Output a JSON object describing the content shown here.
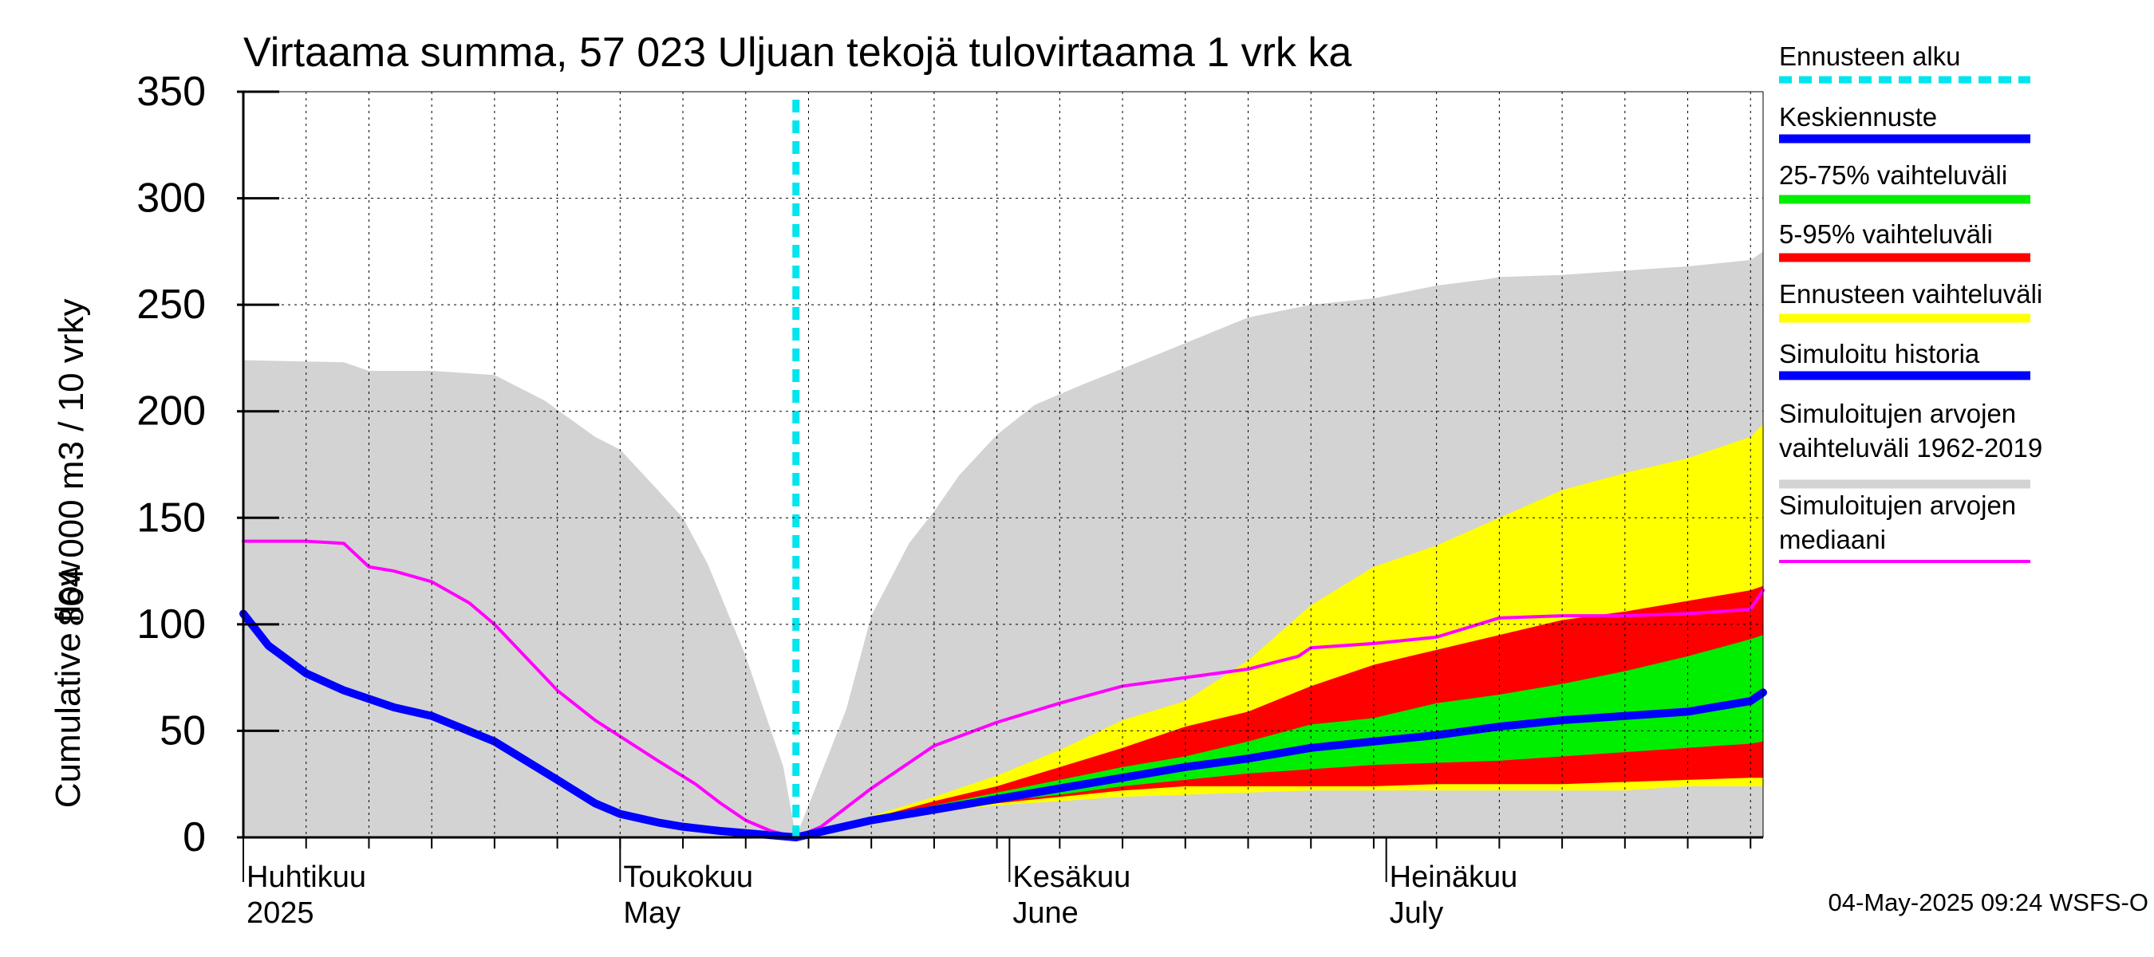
{
  "chart_data": {
    "type": "area",
    "title": "Virtaama summa, 57 023 Uljuan tekojä tulovirtaama 1 vrk ka",
    "ylabel_primary": "864 000 m3 / 10 vrky",
    "ylabel_secondary": "Cumulative flow",
    "ylim": [
      0,
      350
    ],
    "yticks": [
      0,
      50,
      100,
      150,
      200,
      250,
      300,
      350
    ],
    "x_unit": "day",
    "x_range": [
      "2025-04-01",
      "2025-07-31"
    ],
    "month_labels": [
      {
        "date": "2025-04-01",
        "fi": "Huhtikuu",
        "en": "2025"
      },
      {
        "date": "2025-05-01",
        "fi": "Toukokuu",
        "en": "May"
      },
      {
        "date": "2025-06-01",
        "fi": "Kesäkuu",
        "en": "June"
      },
      {
        "date": "2025-07-01",
        "fi": "Heinäkuu",
        "en": "July"
      }
    ],
    "forecast_start": "2025-05-04",
    "grid": true,
    "legend_position": "right",
    "series": [
      {
        "name": "Simuloitujen arvojen vaihteluväli 1962-2019",
        "kind": "band",
        "color": "#d3d3d3",
        "x": [
          0,
          8,
          10,
          15,
          20,
          24,
          28,
          30,
          33,
          35,
          37,
          40,
          43,
          44,
          45,
          48,
          50,
          53,
          55,
          57,
          60,
          63,
          67,
          70,
          75,
          80,
          85,
          90,
          95,
          99,
          100,
          105,
          110,
          115,
          120,
          121
        ],
        "upper": [
          224,
          223,
          219,
          219,
          217,
          205,
          188,
          182,
          163,
          150,
          128,
          85,
          33,
          0,
          15,
          60,
          104,
          138,
          153,
          170,
          189,
          203,
          213,
          220,
          232,
          244,
          250,
          253,
          259,
          262,
          263,
          264,
          266,
          268,
          271,
          275
        ],
        "lower": [
          0,
          0,
          0,
          0,
          0,
          0,
          0,
          0,
          0,
          0,
          0,
          0,
          0,
          0,
          0,
          0,
          0,
          0,
          0,
          0,
          0,
          0,
          0,
          0,
          0,
          0,
          0,
          0,
          0,
          0,
          0,
          0,
          0,
          0,
          0,
          0
        ]
      },
      {
        "name": "Ennusteen vaihteluväli",
        "kind": "band",
        "color": "#ffff00",
        "x": [
          44,
          50,
          55,
          60,
          65,
          70,
          75,
          80,
          85,
          90,
          95,
          100,
          105,
          110,
          115,
          120,
          121
        ],
        "upper": [
          0,
          10,
          19,
          29,
          41,
          55,
          64,
          83,
          109,
          127,
          137,
          150,
          163,
          171,
          178,
          188,
          194
        ],
        "lower": [
          0,
          8,
          12,
          15,
          17,
          19,
          20,
          21,
          22,
          22,
          22,
          22,
          22,
          22,
          24,
          24,
          24
        ]
      },
      {
        "name": "5-95% vaihteluväli",
        "kind": "band",
        "color": "#ff0000",
        "x": [
          44,
          50,
          55,
          60,
          65,
          70,
          75,
          80,
          85,
          90,
          95,
          100,
          105,
          110,
          115,
          120,
          121
        ],
        "upper": [
          0,
          9,
          17,
          24,
          33,
          42,
          52,
          59,
          71,
          81,
          88,
          95,
          102,
          106,
          111,
          116,
          118
        ],
        "lower": [
          0,
          8,
          12,
          16,
          19,
          22,
          24,
          24,
          24,
          24,
          25,
          25,
          25,
          26,
          27,
          28,
          28
        ]
      },
      {
        "name": "25-75% vaihteluväli",
        "kind": "band",
        "color": "#00ee00",
        "x": [
          44,
          50,
          55,
          60,
          65,
          70,
          75,
          80,
          85,
          90,
          95,
          100,
          105,
          110,
          115,
          120,
          121
        ],
        "upper": [
          0,
          9,
          15,
          21,
          27,
          33,
          38,
          45,
          53,
          56,
          63,
          67,
          72,
          78,
          85,
          93,
          95
        ],
        "lower": [
          0,
          8,
          13,
          17,
          20,
          24,
          27,
          30,
          32,
          34,
          35,
          36,
          38,
          40,
          42,
          44,
          45
        ]
      },
      {
        "name": "Simuloitujen arvojen mediaani",
        "kind": "line",
        "color": "#ff00ff",
        "x": [
          0,
          5,
          8,
          10,
          12,
          15,
          18,
          20,
          25,
          28,
          33,
          36,
          38,
          40,
          42,
          44,
          46,
          50,
          55,
          60,
          65,
          70,
          75,
          80,
          84,
          85,
          90,
          95,
          100,
          105,
          110,
          115,
          120,
          121
        ],
        "values": [
          139,
          139,
          138,
          127,
          125,
          120,
          110,
          100,
          69,
          55,
          36,
          25,
          16,
          8,
          3,
          0,
          5,
          23,
          43,
          54,
          63,
          71,
          75,
          79,
          85,
          89,
          91,
          94,
          103,
          104,
          104,
          105,
          107,
          116
        ]
      },
      {
        "name": "Keskiennuste",
        "kind": "line",
        "color": "#0000ff",
        "x": [
          44,
          50,
          55,
          60,
          65,
          70,
          75,
          80,
          85,
          90,
          95,
          100,
          105,
          110,
          115,
          120,
          121
        ],
        "values": [
          0,
          8,
          13,
          18,
          23,
          28,
          33,
          37,
          42,
          45,
          48,
          52,
          55,
          57,
          59,
          64,
          68
        ]
      },
      {
        "name": "Simuloitu historia",
        "kind": "line",
        "color": "#0000ff",
        "x": [
          0,
          2,
          5,
          8,
          12,
          15,
          20,
          25,
          28,
          30,
          33,
          35,
          38,
          40,
          42,
          44
        ],
        "values": [
          105,
          90,
          77,
          69,
          61,
          57,
          45,
          27,
          16,
          11,
          7,
          5,
          3,
          2,
          1,
          0
        ]
      },
      {
        "name": "Ennusteen alku",
        "kind": "vline",
        "color": "#00e5ee",
        "x": [
          44
        ]
      }
    ]
  },
  "legend": {
    "items": [
      {
        "label": "Ennusteen alku",
        "color": "#00e5ee",
        "dashed": true
      },
      {
        "label": "Keskiennuste",
        "color": "#0000ff"
      },
      {
        "label": "25-75% vaihteluväli",
        "color": "#00ee00"
      },
      {
        "label": "5-95% vaihteluväli",
        "color": "#ff0000"
      },
      {
        "label": "Ennusteen vaihteluväli",
        "color": "#ffff00"
      },
      {
        "label": "Simuloitu historia",
        "color": "#0000ff"
      },
      {
        "label": "Simuloitujen arvojen vaihteluväli 1962-2019",
        "label_lines": [
          "Simuloitujen arvojen",
          "vaihteluväli 1962-2019"
        ],
        "color": "#d3d3d3"
      },
      {
        "label": "Simuloitujen arvojen mediaani",
        "label_lines": [
          "Simuloitujen arvojen",
          "mediaani"
        ],
        "color": "#ff00ff"
      }
    ]
  },
  "footer": {
    "timestamp": "04-May-2025 09:24 WSFS-O"
  }
}
